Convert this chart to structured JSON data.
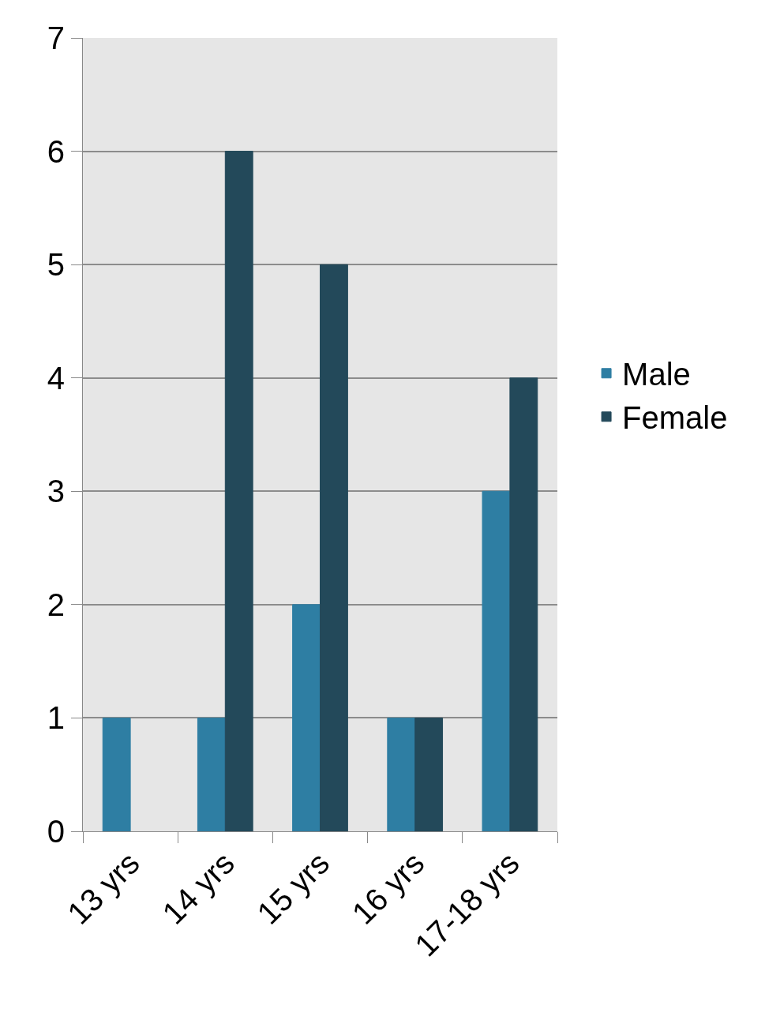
{
  "chart_data": {
    "type": "bar",
    "categories": [
      "13 yrs",
      "14 yrs",
      "15 yrs",
      "16 yrs",
      "17-18 yrs"
    ],
    "series": [
      {
        "name": "Male",
        "color": "#2e7ea3",
        "values": [
          1,
          1,
          2,
          1,
          3
        ]
      },
      {
        "name": "Female",
        "color": "#23495a",
        "values": [
          null,
          6,
          5,
          1,
          4
        ]
      }
    ],
    "ylim": [
      0,
      7
    ],
    "yticks": [
      0,
      1,
      2,
      3,
      4,
      5,
      6,
      7
    ],
    "grid": "y",
    "legend": "right"
  }
}
